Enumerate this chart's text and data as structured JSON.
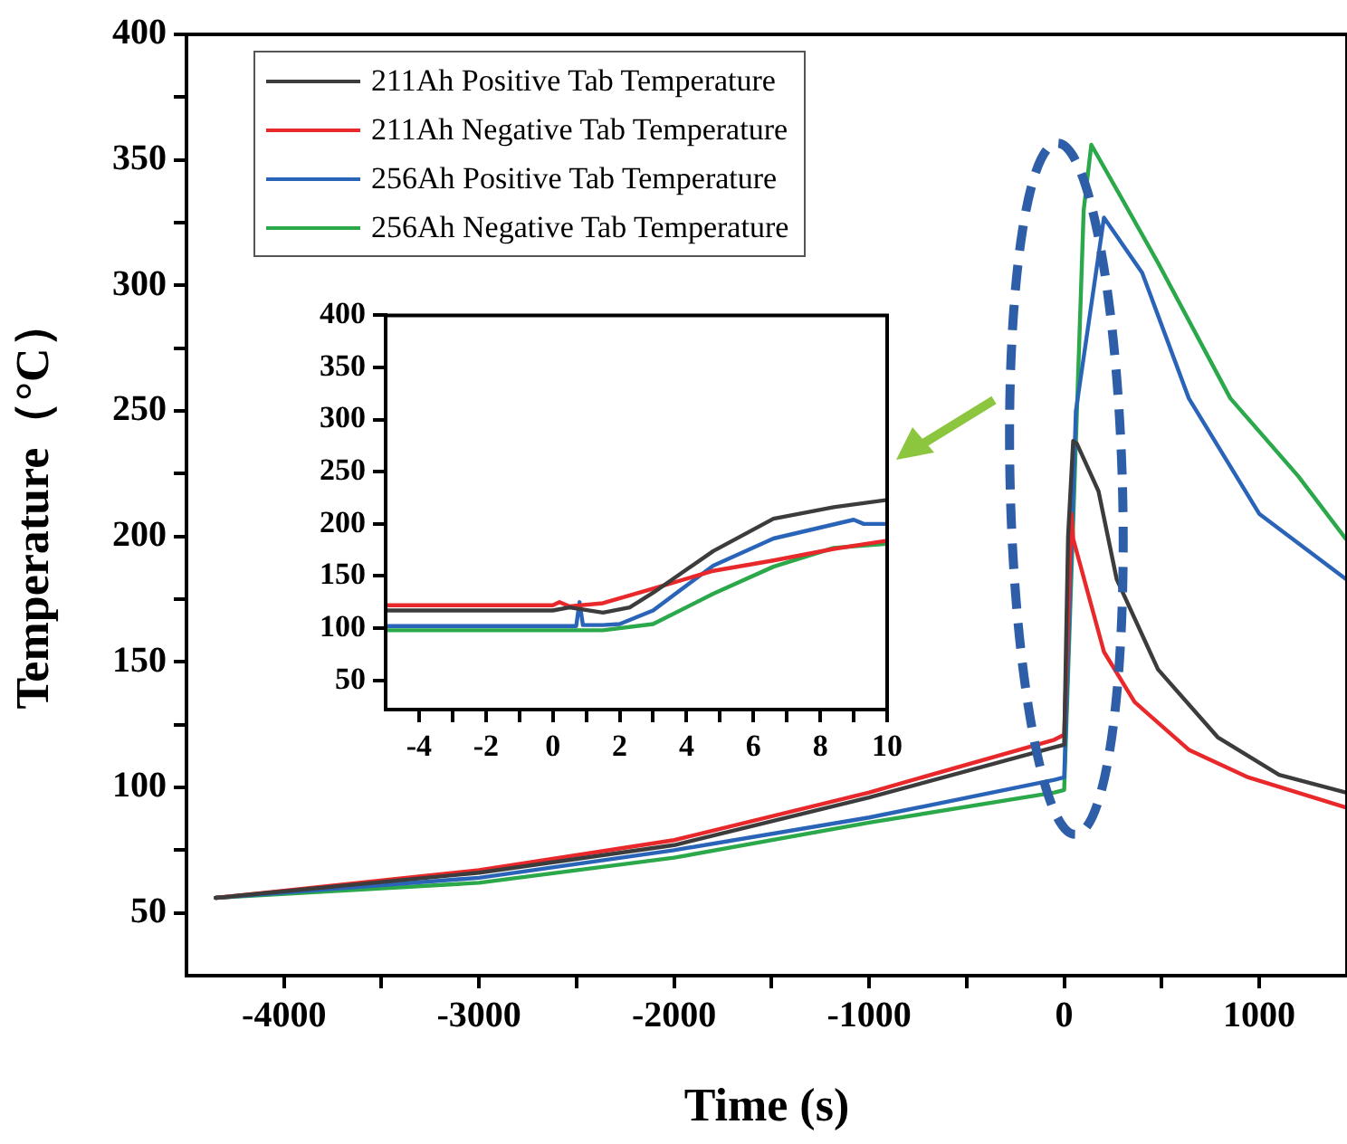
{
  "chart_data": [
    {
      "type": "line",
      "xlabel": "Time (s)",
      "ylabel": "Temperature（°C）",
      "legend": "top left",
      "grid": false,
      "xlim": [
        -4500,
        1450
      ],
      "xticks": [
        -4000,
        -3000,
        -2000,
        -1000,
        0,
        1000,
        {
          "value": -3500,
          "label": null
        },
        {
          "value": -2500,
          "label": null
        },
        {
          "value": -1500,
          "label": null
        },
        {
          "value": -500,
          "label": null
        },
        {
          "value": 500,
          "label": null
        }
      ],
      "ylim": [
        25,
        400
      ],
      "yticks": [
        50,
        100,
        150,
        200,
        250,
        300,
        350,
        400,
        {
          "value": 75,
          "label": null
        },
        {
          "value": 125,
          "label": null
        },
        {
          "value": 175,
          "label": null
        },
        {
          "value": 225,
          "label": null
        },
        {
          "value": 275,
          "label": null
        },
        {
          "value": 325,
          "label": null
        },
        {
          "value": 375,
          "label": null
        }
      ],
      "series": [
        {
          "name": "211Ah Positive Tab Temperature",
          "color": "#3c3c3c",
          "x": [
            -4350,
            -3000,
            -2000,
            -1000,
            -50,
            0,
            20,
            46,
            65,
            176,
            269,
            481,
            787,
            1102,
            1444
          ],
          "values": [
            56,
            66,
            77,
            96,
            116,
            117,
            200,
            238,
            237,
            218,
            183,
            147,
            120,
            105,
            98
          ]
        },
        {
          "name": "211Ah Negative Tab Temperature",
          "color": "#e8282a",
          "x": [
            -4350,
            -3000,
            -2000,
            -1000,
            -50,
            0,
            25,
            37,
            46,
            204,
            361,
            639,
            944,
            1444
          ],
          "values": [
            56,
            67,
            79,
            98,
            119,
            121,
            180,
            209,
            199,
            154,
            134,
            115,
            104,
            92
          ]
        },
        {
          "name": "256Ah Positive Tab Temperature",
          "color": "#2a64b8",
          "x": [
            -4350,
            -3000,
            -2000,
            -1000,
            -50,
            0,
            60,
            204,
            400,
            639,
            1000,
            1444
          ],
          "values": [
            56,
            64,
            75,
            88,
            103,
            104,
            250,
            327,
            305,
            255,
            209,
            183
          ]
        },
        {
          "name": "256Ah Negative Tab Temperature",
          "color": "#2aa84a",
          "x": [
            -4350,
            -3000,
            -2000,
            -1000,
            -50,
            0,
            100,
            139,
            300,
            481,
            852,
            1200,
            1444
          ],
          "values": [
            56,
            62,
            72,
            86,
            98,
            99,
            330,
            356,
            334,
            309,
            255,
            224,
            199
          ]
        }
      ]
    },
    {
      "type": "line",
      "grid": false,
      "xlim": [
        -5,
        10
      ],
      "xticks": [
        -4,
        -2,
        0,
        2,
        4,
        6,
        8,
        10,
        {
          "value": -3,
          "label": null
        },
        {
          "value": -1,
          "label": null
        },
        {
          "value": 1,
          "label": null
        },
        {
          "value": 3,
          "label": null
        },
        {
          "value": 5,
          "label": null
        },
        {
          "value": 7,
          "label": null
        },
        {
          "value": 9,
          "label": null
        }
      ],
      "ylim": [
        22,
        400
      ],
      "yticks": [
        50,
        100,
        150,
        200,
        250,
        300,
        350,
        400
      ],
      "series": [
        {
          "color": "#3c3c3c",
          "x": [
            -5,
            0,
            0.5,
            1.5,
            2.3,
            3,
            4.8,
            6.6,
            8.4,
            10
          ],
          "values": [
            117,
            117,
            120,
            115,
            120,
            134,
            174,
            205,
            216,
            223
          ]
        },
        {
          "color": "#e8282a",
          "x": [
            -5,
            0,
            0.2,
            0.5,
            1.5,
            3,
            4.8,
            6.6,
            8.4,
            10
          ],
          "values": [
            122,
            122,
            125,
            121,
            124,
            138,
            155,
            165,
            176,
            184
          ]
        },
        {
          "color": "#2a64b8",
          "x": [
            -5,
            0.7,
            0.8,
            0.9,
            1.5,
            2,
            3,
            4.8,
            6.6,
            9,
            9.3,
            10
          ],
          "values": [
            102,
            102,
            125,
            103,
            103,
            104,
            117,
            160,
            186,
            204,
            200,
            200
          ]
        },
        {
          "color": "#2aa84a",
          "x": [
            -5,
            1.5,
            3,
            4.8,
            6.6,
            8.4,
            10
          ],
          "values": [
            98,
            98,
            104,
            133,
            159,
            177,
            181
          ]
        }
      ]
    }
  ]
}
